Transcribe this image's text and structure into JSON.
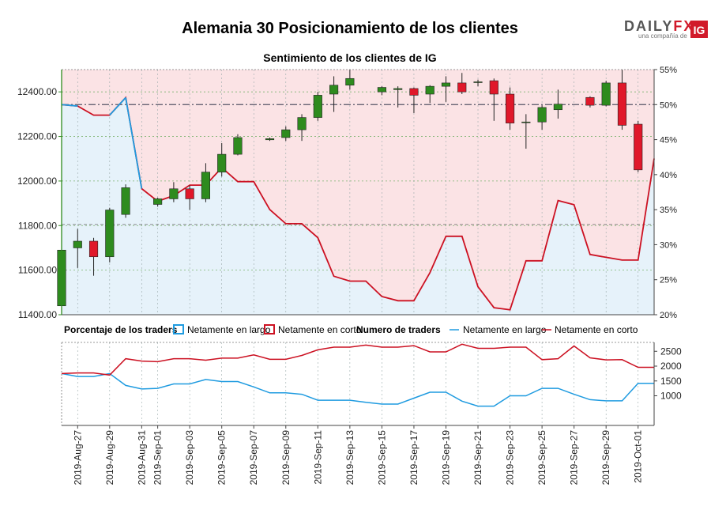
{
  "title": "Alemania 30 Posicionamiento de los clientes",
  "subtitle": "Sentimiento de los clientes de IG",
  "logo": {
    "brand_a": "DAILY",
    "brand_b": "FX",
    "sub": "una compañía de",
    "ig": "IG"
  },
  "colors": {
    "long": "#1f9be0",
    "short": "#cc1122",
    "long_fill": "#e6f2fa",
    "short_fill": "#fbe3e5",
    "candle_up": "#2e8b1e",
    "candle_down": "#e0182a",
    "axis_left": "#2e8b1e",
    "ref_line": "#555566"
  },
  "legend": {
    "pct_title": "Porcentaje de los traders",
    "pct_long": "Netamente en largo",
    "pct_short": "Netamente en corto",
    "num_title": "Numero de traders",
    "num_long": "Netamente en largo",
    "num_short": "Netamente en corto"
  },
  "chart_data": {
    "type": "candlestick",
    "dates": [
      "2019-Aug-26",
      "2019-Aug-27",
      "2019-Aug-28",
      "2019-Aug-29",
      "2019-Aug-30",
      "2019-Aug-31",
      "2019-Sep-01",
      "2019-Sep-02",
      "2019-Sep-03",
      "2019-Sep-04",
      "2019-Sep-05",
      "2019-Sep-06",
      "2019-Sep-07",
      "2019-Sep-08",
      "2019-Sep-09",
      "2019-Sep-10",
      "2019-Sep-11",
      "2019-Sep-12",
      "2019-Sep-13",
      "2019-Sep-14",
      "2019-Sep-15",
      "2019-Sep-16",
      "2019-Sep-17",
      "2019-Sep-18",
      "2019-Sep-19",
      "2019-Sep-20",
      "2019-Sep-21",
      "2019-Sep-22",
      "2019-Sep-23",
      "2019-Sep-24",
      "2019-Sep-25",
      "2019-Sep-26",
      "2019-Sep-27",
      "2019-Sep-28",
      "2019-Sep-29",
      "2019-Sep-30",
      "2019-Oct-01",
      "2019-Oct-02"
    ],
    "x_ticks": [
      "2019-Aug-27",
      "2019-Aug-29",
      "2019-Aug-31",
      "2019-Sep-01",
      "2019-Sep-03",
      "2019-Sep-05",
      "2019-Sep-07",
      "2019-Sep-09",
      "2019-Sep-11",
      "2019-Sep-13",
      "2019-Sep-15",
      "2019-Sep-17",
      "2019-Sep-19",
      "2019-Sep-21",
      "2019-Sep-23",
      "2019-Sep-25",
      "2019-Sep-27",
      "2019-Sep-29",
      "2019-Oct-01"
    ],
    "price_axis": {
      "ylim": [
        11400,
        12500
      ],
      "ticks": [
        "11400.00",
        "11600.00",
        "11800.00",
        "12000.00",
        "12200.00",
        "12400.00"
      ]
    },
    "pct_axis": {
      "ylim": [
        20,
        55
      ],
      "ticks": [
        "20%",
        "25%",
        "30%",
        "35%",
        "40%",
        "45%",
        "50%",
        "55%"
      ]
    },
    "count_axis": {
      "ylim": [
        0,
        2800
      ],
      "ticks": [
        "1000",
        "1500",
        "2000",
        "2500"
      ]
    },
    "reference_pct": 50,
    "reference_price": 11805,
    "candles": [
      {
        "d": "2019-Aug-26",
        "o": 11440,
        "h": 11700,
        "l": 11420,
        "c": 11690
      },
      {
        "d": "2019-Aug-27",
        "o": 11700,
        "h": 11785,
        "l": 11610,
        "c": 11730
      },
      {
        "d": "2019-Aug-28",
        "o": 11730,
        "h": 11745,
        "l": 11575,
        "c": 11660
      },
      {
        "d": "2019-Aug-29",
        "o": 11660,
        "h": 11880,
        "l": 11635,
        "c": 11870
      },
      {
        "d": "2019-Aug-30",
        "o": 11850,
        "h": 11985,
        "l": 11835,
        "c": 11970
      },
      {
        "d": "2019-Sep-01",
        "o": 11895,
        "h": 11925,
        "l": 11885,
        "c": 11920
      },
      {
        "d": "2019-Sep-02",
        "o": 11920,
        "h": 11995,
        "l": 11905,
        "c": 11965
      },
      {
        "d": "2019-Sep-03",
        "o": 11965,
        "h": 11980,
        "l": 11870,
        "c": 11920
      },
      {
        "d": "2019-Sep-04",
        "o": 11920,
        "h": 12080,
        "l": 11905,
        "c": 12040
      },
      {
        "d": "2019-Sep-05",
        "o": 12040,
        "h": 12170,
        "l": 12020,
        "c": 12120
      },
      {
        "d": "2019-Sep-06",
        "o": 12120,
        "h": 12210,
        "l": 12115,
        "c": 12195
      },
      {
        "d": "2019-Sep-08",
        "o": 12185,
        "h": 12195,
        "l": 12180,
        "c": 12190
      },
      {
        "d": "2019-Sep-09",
        "o": 12195,
        "h": 12245,
        "l": 12180,
        "c": 12230
      },
      {
        "d": "2019-Sep-10",
        "o": 12230,
        "h": 12300,
        "l": 12180,
        "c": 12285
      },
      {
        "d": "2019-Sep-11",
        "o": 12285,
        "h": 12400,
        "l": 12270,
        "c": 12385
      },
      {
        "d": "2019-Sep-12",
        "o": 12390,
        "h": 12470,
        "l": 12310,
        "c": 12430
      },
      {
        "d": "2019-Sep-13",
        "o": 12430,
        "h": 12500,
        "l": 12410,
        "c": 12460
      },
      {
        "d": "2019-Sep-15",
        "o": 12400,
        "h": 12425,
        "l": 12385,
        "c": 12420
      },
      {
        "d": "2019-Sep-16",
        "o": 12410,
        "h": 12425,
        "l": 12330,
        "c": 12415
      },
      {
        "d": "2019-Sep-17",
        "o": 12415,
        "h": 12420,
        "l": 12305,
        "c": 12385
      },
      {
        "d": "2019-Sep-18",
        "o": 12390,
        "h": 12430,
        "l": 12350,
        "c": 12425
      },
      {
        "d": "2019-Sep-19",
        "o": 12425,
        "h": 12470,
        "l": 12355,
        "c": 12440
      },
      {
        "d": "2019-Sep-20",
        "o": 12440,
        "h": 12485,
        "l": 12390,
        "c": 12400
      },
      {
        "d": "2019-Sep-21",
        "o": 12445,
        "h": 12455,
        "l": 12425,
        "c": 12445
      },
      {
        "d": "2019-Sep-22",
        "o": 12450,
        "h": 12460,
        "l": 12270,
        "c": 12390
      },
      {
        "d": "2019-Sep-23",
        "o": 12390,
        "h": 12420,
        "l": 12230,
        "c": 12260
      },
      {
        "d": "2019-Sep-24",
        "o": 12265,
        "h": 12300,
        "l": 12145,
        "c": 12265
      },
      {
        "d": "2019-Sep-25",
        "o": 12265,
        "h": 12340,
        "l": 12230,
        "c": 12330
      },
      {
        "d": "2019-Sep-26",
        "o": 12320,
        "h": 12410,
        "l": 12280,
        "c": 12345
      },
      {
        "d": "2019-Sep-28",
        "o": 12375,
        "h": 12380,
        "l": 12330,
        "c": 12340
      },
      {
        "d": "2019-Sep-29",
        "o": 12340,
        "h": 12450,
        "l": 12335,
        "c": 12440
      },
      {
        "d": "2019-Sep-30",
        "o": 12440,
        "h": 12500,
        "l": 12230,
        "c": 12250
      },
      {
        "d": "2019-Oct-01",
        "o": 12255,
        "h": 12270,
        "l": 12040,
        "c": 12050
      }
    ],
    "pct_series": {
      "dates": [
        "2019-Aug-26",
        "2019-Aug-27",
        "2019-Aug-28",
        "2019-Aug-29",
        "2019-Aug-30",
        "2019-Aug-31",
        "2019-Sep-01",
        "2019-Sep-02",
        "2019-Sep-03",
        "2019-Sep-04",
        "2019-Sep-05",
        "2019-Sep-06",
        "2019-Sep-07",
        "2019-Sep-08",
        "2019-Sep-09",
        "2019-Sep-10",
        "2019-Sep-11",
        "2019-Sep-12",
        "2019-Sep-13",
        "2019-Sep-14",
        "2019-Sep-15",
        "2019-Sep-16",
        "2019-Sep-17",
        "2019-Sep-18",
        "2019-Sep-19",
        "2019-Sep-20",
        "2019-Sep-21",
        "2019-Sep-22",
        "2019-Sep-23",
        "2019-Sep-24",
        "2019-Sep-25",
        "2019-Sep-26",
        "2019-Sep-27",
        "2019-Sep-28",
        "2019-Sep-29",
        "2019-Sep-30",
        "2019-Oct-01",
        "2019-Oct-02"
      ],
      "long_pct": [
        50,
        49.8,
        48.5,
        48.5,
        51,
        38,
        36.2,
        37,
        38.5,
        38.5,
        41,
        39,
        39,
        35,
        33,
        33,
        31,
        25.5,
        24.8,
        24.8,
        22.6,
        22,
        22,
        26,
        31.2,
        31.2,
        24,
        21,
        20.7,
        27.7,
        27.7,
        36.3,
        35.7,
        28.6,
        28.2,
        27.8,
        27.8,
        42.3
      ]
    },
    "count_series": [
      {
        "name": "Netamente en largo",
        "values": [
          1750,
          1650,
          1650,
          1750,
          1350,
          1230,
          1250,
          1400,
          1400,
          1550,
          1480,
          1480,
          1300,
          1100,
          1100,
          1050,
          850,
          850,
          850,
          780,
          720,
          720,
          920,
          1120,
          1120,
          820,
          650,
          650,
          1000,
          1000,
          1250,
          1250,
          1050,
          870,
          830,
          830,
          1420,
          1420
        ]
      },
      {
        "name": "Netamente en corto",
        "values": [
          1750,
          1770,
          1770,
          1700,
          2250,
          2170,
          2150,
          2250,
          2250,
          2200,
          2270,
          2270,
          2380,
          2230,
          2230,
          2360,
          2550,
          2640,
          2640,
          2710,
          2640,
          2640,
          2690,
          2480,
          2480,
          2740,
          2600,
          2600,
          2640,
          2640,
          2220,
          2250,
          2680,
          2280,
          2210,
          2220,
          1960,
          1960
        ]
      }
    ]
  }
}
